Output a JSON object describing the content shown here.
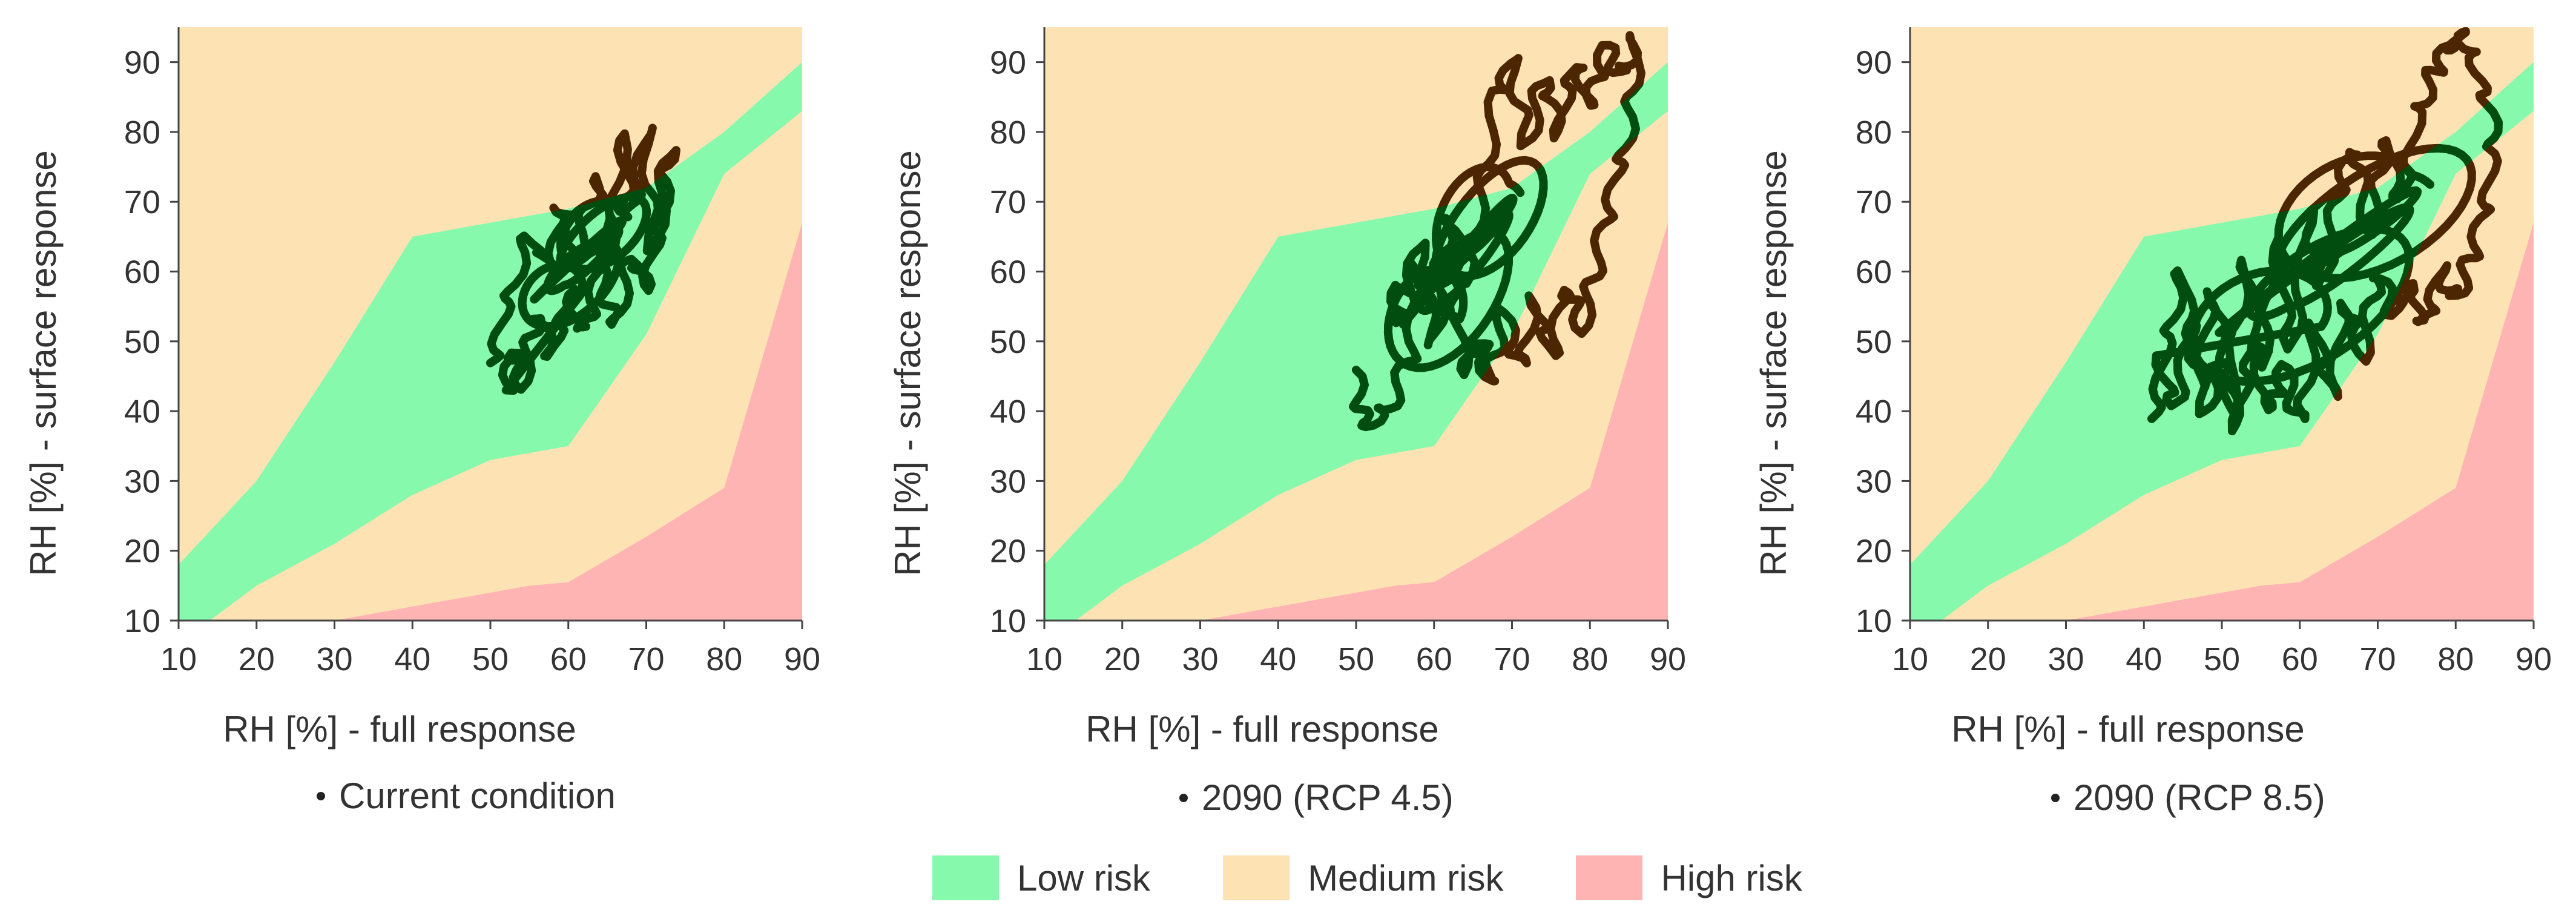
{
  "colors": {
    "low": "#86f9ad",
    "medium": "#fde3b3",
    "high": "#ffb4b4",
    "trace_in_low": "#004d10",
    "trace_outside": "#4b2600",
    "axis": "#444444",
    "text": "#333333"
  },
  "legend": [
    {
      "label": "Low risk",
      "color_key": "low"
    },
    {
      "label": "Medium risk",
      "color_key": "medium"
    },
    {
      "label": "High risk",
      "color_key": "high"
    }
  ],
  "chart_data": [
    {
      "type": "area",
      "panel": "left",
      "caption": "Current condition",
      "xlabel": "RH [%] - full response",
      "ylabel": "RH [%] - surface response",
      "xlim": [
        10,
        90
      ],
      "ylim": [
        10,
        95
      ],
      "xticks": [
        10,
        20,
        30,
        40,
        50,
        60,
        70,
        80,
        90
      ],
      "yticks": [
        10,
        20,
        30,
        40,
        50,
        60,
        70,
        80,
        90
      ],
      "regions": {
        "low": [
          [
            10,
            18
          ],
          [
            20,
            30
          ],
          [
            30,
            47
          ],
          [
            40,
            65
          ],
          [
            50,
            67
          ],
          [
            60,
            69
          ],
          [
            70,
            72
          ],
          [
            80,
            80
          ],
          [
            90,
            90
          ],
          [
            90,
            83
          ],
          [
            80,
            74
          ],
          [
            70,
            51
          ],
          [
            60,
            35
          ],
          [
            50,
            33
          ],
          [
            40,
            28
          ],
          [
            30,
            21
          ],
          [
            20,
            15
          ],
          [
            14,
            10
          ],
          [
            10,
            10
          ]
        ],
        "high": [
          [
            30,
            10
          ],
          [
            40,
            12
          ],
          [
            55,
            15
          ],
          [
            60,
            15.5
          ],
          [
            70,
            22
          ],
          [
            80,
            29
          ],
          [
            90,
            67
          ],
          [
            90,
            10
          ]
        ]
      },
      "trace": [
        [
          50,
          46
        ],
        [
          52,
          55
        ],
        [
          55,
          65
        ],
        [
          58,
          60
        ],
        [
          59,
          70
        ],
        [
          61,
          63
        ],
        [
          64,
          74
        ],
        [
          65,
          61
        ],
        [
          67,
          79
        ],
        [
          68,
          68
        ],
        [
          70,
          80
        ],
        [
          71,
          63
        ],
        [
          73,
          78
        ],
        [
          72,
          68
        ],
        [
          70,
          58
        ],
        [
          68,
          62
        ],
        [
          66,
          52
        ],
        [
          64,
          60
        ],
        [
          62,
          51
        ],
        [
          60,
          57
        ],
        [
          58,
          48
        ],
        [
          56,
          54
        ],
        [
          54,
          44
        ],
        [
          53,
          49
        ],
        [
          52,
          43
        ]
      ],
      "trace_center": [
        62,
        62
      ],
      "trace_amplitude": [
        8,
        10
      ]
    },
    {
      "type": "area",
      "panel": "middle",
      "caption": "2090 (RCP 4.5)",
      "xlabel": "RH [%] - full response",
      "ylabel": "RH [%] - surface response",
      "xlim": [
        10,
        90
      ],
      "ylim": [
        10,
        95
      ],
      "xticks": [
        10,
        20,
        30,
        40,
        50,
        60,
        70,
        80,
        90
      ],
      "yticks": [
        10,
        20,
        30,
        40,
        50,
        60,
        70,
        80,
        90
      ],
      "regions": {
        "low": [
          [
            10,
            18
          ],
          [
            20,
            30
          ],
          [
            30,
            47
          ],
          [
            40,
            65
          ],
          [
            50,
            67
          ],
          [
            60,
            69
          ],
          [
            70,
            72
          ],
          [
            80,
            80
          ],
          [
            90,
            90
          ],
          [
            90,
            83
          ],
          [
            80,
            74
          ],
          [
            70,
            51
          ],
          [
            60,
            35
          ],
          [
            50,
            33
          ],
          [
            40,
            28
          ],
          [
            30,
            21
          ],
          [
            20,
            15
          ],
          [
            14,
            10
          ],
          [
            10,
            10
          ]
        ],
        "high": [
          [
            30,
            10
          ],
          [
            40,
            12
          ],
          [
            55,
            15
          ],
          [
            60,
            15.5
          ],
          [
            70,
            22
          ],
          [
            80,
            29
          ],
          [
            90,
            67
          ],
          [
            90,
            10
          ]
        ]
      },
      "trace": [
        [
          50,
          45
        ],
        [
          51,
          38
        ],
        [
          54,
          40
        ],
        [
          57,
          48
        ],
        [
          58,
          62
        ],
        [
          60,
          55
        ],
        [
          62,
          68
        ],
        [
          64,
          58
        ],
        [
          66,
          70
        ],
        [
          68,
          85
        ],
        [
          70,
          90
        ],
        [
          72,
          78
        ],
        [
          74,
          88
        ],
        [
          76,
          80
        ],
        [
          78,
          90
        ],
        [
          80,
          84
        ],
        [
          82,
          92
        ],
        [
          84,
          88
        ],
        [
          86,
          93
        ],
        [
          85,
          80
        ],
        [
          83,
          72
        ],
        [
          81,
          62
        ],
        [
          79,
          52
        ],
        [
          77,
          58
        ],
        [
          75,
          48
        ],
        [
          73,
          56
        ],
        [
          71,
          46
        ],
        [
          69,
          54
        ],
        [
          67,
          44
        ],
        [
          66,
          50
        ],
        [
          64,
          46
        ],
        [
          62,
          60
        ],
        [
          60,
          50
        ],
        [
          58,
          64
        ],
        [
          56,
          52
        ],
        [
          55,
          58
        ]
      ],
      "trace_center": [
        64,
        62
      ],
      "trace_amplitude": [
        10,
        16
      ]
    },
    {
      "type": "area",
      "panel": "right",
      "caption": "2090 (RCP 8.5)",
      "xlabel": "RH [%] - full response",
      "ylabel": "RH [%] - surface response",
      "xlim": [
        10,
        90
      ],
      "ylim": [
        10,
        95
      ],
      "xticks": [
        10,
        20,
        30,
        40,
        50,
        60,
        70,
        80,
        90
      ],
      "yticks": [
        10,
        20,
        30,
        40,
        50,
        60,
        70,
        80,
        90
      ],
      "regions": {
        "low": [
          [
            10,
            18
          ],
          [
            20,
            30
          ],
          [
            30,
            47
          ],
          [
            40,
            65
          ],
          [
            50,
            67
          ],
          [
            60,
            69
          ],
          [
            70,
            72
          ],
          [
            80,
            80
          ],
          [
            90,
            90
          ],
          [
            90,
            83
          ],
          [
            80,
            74
          ],
          [
            70,
            51
          ],
          [
            60,
            35
          ],
          [
            50,
            33
          ],
          [
            40,
            28
          ],
          [
            30,
            21
          ],
          [
            20,
            15
          ],
          [
            14,
            10
          ],
          [
            10,
            10
          ]
        ],
        "high": [
          [
            30,
            10
          ],
          [
            40,
            12
          ],
          [
            55,
            15
          ],
          [
            60,
            15.5
          ],
          [
            70,
            22
          ],
          [
            80,
            29
          ],
          [
            90,
            67
          ],
          [
            90,
            10
          ]
        ]
      },
      "trace": [
        [
          41,
          38
        ],
        [
          43,
          50
        ],
        [
          45,
          60
        ],
        [
          47,
          44
        ],
        [
          49,
          58
        ],
        [
          51,
          40
        ],
        [
          53,
          62
        ],
        [
          55,
          46
        ],
        [
          57,
          64
        ],
        [
          59,
          48
        ],
        [
          61,
          68
        ],
        [
          63,
          58
        ],
        [
          65,
          72
        ],
        [
          67,
          78
        ],
        [
          69,
          66
        ],
        [
          71,
          79
        ],
        [
          73,
          70
        ],
        [
          75,
          82
        ],
        [
          77,
          88
        ],
        [
          79,
          92
        ],
        [
          81,
          94
        ],
        [
          83,
          88
        ],
        [
          85,
          80
        ],
        [
          84,
          70
        ],
        [
          82,
          62
        ],
        [
          80,
          56
        ],
        [
          78,
          60
        ],
        [
          76,
          52
        ],
        [
          74,
          58
        ],
        [
          72,
          54
        ],
        [
          70,
          60
        ],
        [
          68,
          48
        ],
        [
          66,
          56
        ],
        [
          64,
          42
        ],
        [
          62,
          52
        ],
        [
          60,
          38
        ],
        [
          58,
          46
        ],
        [
          56,
          40
        ],
        [
          54,
          50
        ],
        [
          52,
          38
        ],
        [
          50,
          48
        ],
        [
          48,
          40
        ],
        [
          46,
          52
        ],
        [
          44,
          40
        ],
        [
          42,
          48
        ]
      ],
      "trace_center": [
        64,
        62
      ],
      "trace_amplitude": [
        18,
        18
      ]
    }
  ]
}
